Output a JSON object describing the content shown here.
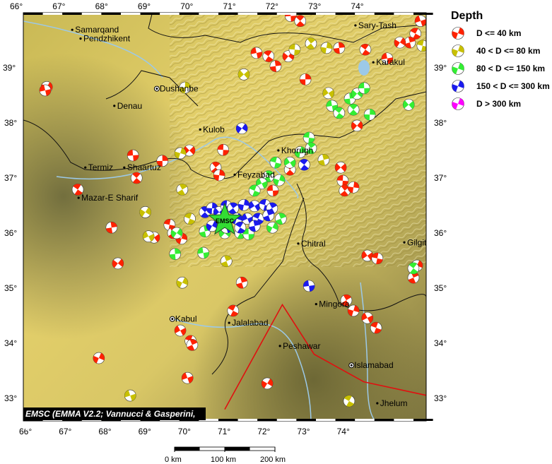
{
  "map": {
    "credit": "EMSC (EMMA V2.2; Vannucci & Gasperini, 2004)",
    "lon_ticks": [
      66,
      67,
      68,
      69,
      70,
      71,
      72,
      73,
      74
    ],
    "lat_ticks": [
      33,
      34,
      35,
      36,
      37,
      38,
      39
    ],
    "lon_range": [
      66,
      76.1
    ],
    "lat_range": [
      32.6,
      39.98
    ],
    "terrain_colors": {
      "highland": "#e8d36a",
      "lowland": "#6f6a3a",
      "water": "#9cc9e8"
    },
    "fault_color": "#e01010",
    "cities": [
      {
        "name": "Samarqand",
        "lon": 67.16,
        "lat": 39.69,
        "capital": false
      },
      {
        "name": "Pendzhikent",
        "lon": 67.37,
        "lat": 39.53,
        "capital": false
      },
      {
        "name": "Dushanbe",
        "lon": 69.29,
        "lat": 38.62,
        "capital": true
      },
      {
        "name": "Denau",
        "lon": 68.22,
        "lat": 38.31,
        "capital": false
      },
      {
        "name": "Kulob",
        "lon": 70.38,
        "lat": 37.88,
        "capital": false
      },
      {
        "name": "Khorugh",
        "lon": 72.35,
        "lat": 37.5,
        "capital": false
      },
      {
        "name": "Feyzabad",
        "lon": 71.25,
        "lat": 37.06,
        "capital": false
      },
      {
        "name": "Termiz",
        "lon": 67.49,
        "lat": 37.19,
        "capital": false
      },
      {
        "name": "Shaartuz",
        "lon": 68.47,
        "lat": 37.19,
        "capital": false
      },
      {
        "name": "Mazar-E Sharif",
        "lon": 67.32,
        "lat": 36.64,
        "capital": false
      },
      {
        "name": "Chitral",
        "lon": 72.85,
        "lat": 35.81,
        "capital": false
      },
      {
        "name": "Gilgit",
        "lon": 75.52,
        "lat": 35.83,
        "capital": false
      },
      {
        "name": "Kabul",
        "lon": 69.68,
        "lat": 34.44,
        "capital": true
      },
      {
        "name": "Jalalabad",
        "lon": 71.11,
        "lat": 34.37,
        "capital": false
      },
      {
        "name": "Peshawar",
        "lon": 72.39,
        "lat": 33.95,
        "capital": false
      },
      {
        "name": "Mingora",
        "lon": 73.3,
        "lat": 34.71,
        "capital": false
      },
      {
        "name": "Islamabad",
        "lon": 74.19,
        "lat": 33.6,
        "capital": true
      },
      {
        "name": "Jhelum",
        "lon": 74.84,
        "lat": 32.91,
        "capital": false
      },
      {
        "name": "Sary-Tash",
        "lon": 74.29,
        "lat": 39.77,
        "capital": false
      },
      {
        "name": "Karakul",
        "lon": 74.74,
        "lat": 39.1,
        "capital": false
      }
    ],
    "epicenter": {
      "label": "EMSC",
      "lon": 71.0,
      "lat": 36.23,
      "color": "#33dd33"
    },
    "fault_line": [
      [
        71.0,
        32.8
      ],
      [
        72.45,
        34.7
      ],
      [
        73.25,
        33.8
      ],
      [
        74.5,
        33.3
      ],
      [
        76.1,
        33.05
      ]
    ]
  },
  "legend": {
    "title": "Depth",
    "classes": [
      {
        "label": "D <= 40 km",
        "color": "#ff2200"
      },
      {
        "label": "40 < D <= 80 km",
        "color": "#c8c000"
      },
      {
        "label": "80 < D <= 150 km",
        "color": "#33ee33"
      },
      {
        "label": "150 < D <= 300 km",
        "color": "#1a1aee"
      },
      {
        "label": "D > 300 km",
        "color": "#ff00ff"
      }
    ]
  },
  "events": [
    {
      "class": 0,
      "points": [
        [
          66.52,
          38.65
        ],
        [
          66.48,
          38.59
        ],
        [
          67.3,
          36.79
        ],
        [
          68.15,
          36.1
        ],
        [
          68.31,
          35.45
        ],
        [
          68.69,
          37.41
        ],
        [
          68.78,
          37.0
        ],
        [
          69.43,
          37.31
        ],
        [
          70.11,
          37.5
        ],
        [
          70.96,
          37.51
        ],
        [
          70.77,
          37.19
        ],
        [
          70.86,
          37.05
        ],
        [
          69.22,
          35.92
        ],
        [
          69.61,
          36.15
        ],
        [
          69.7,
          36.0
        ],
        [
          69.91,
          35.9
        ],
        [
          69.88,
          34.23
        ],
        [
          70.14,
          34.04
        ],
        [
          70.18,
          33.97
        ],
        [
          67.83,
          33.73
        ],
        [
          70.06,
          33.37
        ],
        [
          71.21,
          34.59
        ],
        [
          71.43,
          35.1
        ],
        [
          72.07,
          33.27
        ],
        [
          71.8,
          39.27
        ],
        [
          72.1,
          39.21
        ],
        [
          72.28,
          39.03
        ],
        [
          72.6,
          39.21
        ],
        [
          72.66,
          39.94
        ],
        [
          72.9,
          39.85
        ],
        [
          73.03,
          38.79
        ],
        [
          73.92,
          37.19
        ],
        [
          73.97,
          36.95
        ],
        [
          74.02,
          36.77
        ],
        [
          74.24,
          36.83
        ],
        [
          74.59,
          35.59
        ],
        [
          74.84,
          35.54
        ],
        [
          74.06,
          34.78
        ],
        [
          74.24,
          34.59
        ],
        [
          74.59,
          34.46
        ],
        [
          74.81,
          34.28
        ],
        [
          75.75,
          35.19
        ],
        [
          75.84,
          35.41
        ],
        [
          75.93,
          39.85
        ],
        [
          75.8,
          39.62
        ],
        [
          75.66,
          39.46
        ],
        [
          75.41,
          39.46
        ],
        [
          75.09,
          39.17
        ],
        [
          74.54,
          39.33
        ],
        [
          73.88,
          39.36
        ],
        [
          74.33,
          37.95
        ],
        [
          72.21,
          36.77
        ],
        [
          72.64,
          37.15
        ]
      ]
    },
    {
      "class": 1,
      "points": [
        [
          70.0,
          38.64
        ],
        [
          71.48,
          38.88
        ],
        [
          72.76,
          39.33
        ],
        [
          73.17,
          39.44
        ],
        [
          73.56,
          39.36
        ],
        [
          73.61,
          38.54
        ],
        [
          75.98,
          39.4
        ],
        [
          69.93,
          36.79
        ],
        [
          69.88,
          37.45
        ],
        [
          69.08,
          35.94
        ],
        [
          70.12,
          36.26
        ],
        [
          71.04,
          35.49
        ],
        [
          69.93,
          35.1
        ],
        [
          68.62,
          33.05
        ],
        [
          74.13,
          32.95
        ],
        [
          73.49,
          37.33
        ],
        [
          69.0,
          36.38
        ]
      ]
    },
    {
      "class": 2,
      "points": [
        [
          73.7,
          38.31
        ],
        [
          73.88,
          38.18
        ],
        [
          74.15,
          38.44
        ],
        [
          74.33,
          38.53
        ],
        [
          74.51,
          38.63
        ],
        [
          74.24,
          38.24
        ],
        [
          74.65,
          38.15
        ],
        [
          75.63,
          38.33
        ],
        [
          73.12,
          37.73
        ],
        [
          73.17,
          37.54
        ],
        [
          72.9,
          37.47
        ],
        [
          72.64,
          37.28
        ],
        [
          72.28,
          37.28
        ],
        [
          72.1,
          37.03
        ],
        [
          72.37,
          36.96
        ],
        [
          71.93,
          36.9
        ],
        [
          71.75,
          36.77
        ],
        [
          72.41,
          36.26
        ],
        [
          72.2,
          36.1
        ],
        [
          71.75,
          36.13
        ],
        [
          71.39,
          36.0
        ],
        [
          70.5,
          36.03
        ],
        [
          69.79,
          36.0
        ],
        [
          70.46,
          35.64
        ],
        [
          75.75,
          35.36
        ],
        [
          69.75,
          35.62
        ],
        [
          71.0,
          36.0
        ],
        [
          71.6,
          35.98
        ]
      ]
    },
    {
      "class": 3,
      "points": [
        [
          70.5,
          36.38
        ],
        [
          70.68,
          36.45
        ],
        [
          70.86,
          36.38
        ],
        [
          71.04,
          36.49
        ],
        [
          71.21,
          36.45
        ],
        [
          71.48,
          36.51
        ],
        [
          71.75,
          36.49
        ],
        [
          72.01,
          36.51
        ],
        [
          72.19,
          36.45
        ],
        [
          71.3,
          36.26
        ],
        [
          71.57,
          36.26
        ],
        [
          71.84,
          36.26
        ],
        [
          72.1,
          36.32
        ],
        [
          70.68,
          36.13
        ],
        [
          71.04,
          36.1
        ],
        [
          71.39,
          36.1
        ],
        [
          71.75,
          36.13
        ],
        [
          71.43,
          37.9
        ],
        [
          73.12,
          35.04
        ],
        [
          73.0,
          37.24
        ]
      ]
    }
  ],
  "scale_bar": {
    "labels": [
      "0 km",
      "100 km",
      "200 km"
    ]
  }
}
